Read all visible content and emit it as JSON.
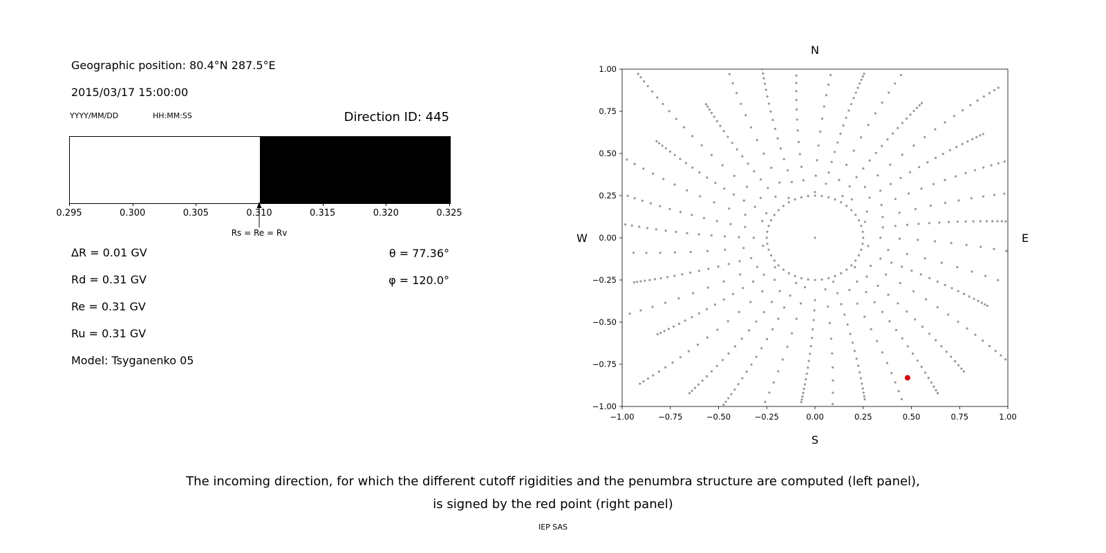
{
  "left_panel": {
    "geo_position": "Geographic position: 80.4°N 287.5°E",
    "datetime": "2015/03/17 15:00:00",
    "date_format_label": "YYYY/MM/DD",
    "time_format_label": "HH:MM:SS",
    "direction_id": "Direction ID: 445",
    "params": [
      "ΔR = 0.01 GV",
      "Rd = 0.31 GV",
      "Re = 0.31 GV",
      "Ru = 0.31 GV",
      "Model: Tsyganenko 05"
    ],
    "theta": "θ = 77.36°",
    "phi": "φ = 120.0°"
  },
  "caption": {
    "line1": "The incoming direction, for which the different cutoff rigidities and the penumbra structure are computed (left panel),",
    "line2": "is signed by the red point (right panel)",
    "credit": "IEP SAS"
  },
  "chart_data": [
    {
      "type": "bar",
      "title": "Penumbra structure",
      "xlim": [
        0.295,
        0.325
      ],
      "x_ticks": [
        {
          "value": 0.295,
          "label": "0.295"
        },
        {
          "value": 0.3,
          "label": "0.300"
        },
        {
          "value": 0.305,
          "label": "0.305"
        },
        {
          "value": 0.31,
          "label": "0.310"
        },
        {
          "value": 0.315,
          "label": "0.315"
        },
        {
          "value": 0.32,
          "label": "0.320"
        },
        {
          "value": 0.325,
          "label": "0.325"
        }
      ],
      "segments": [
        {
          "from": 0.295,
          "to": 0.31,
          "color": "#ffffff"
        },
        {
          "from": 0.31,
          "to": 0.325,
          "color": "#000000"
        }
      ],
      "marker": {
        "x": 0.31,
        "label": "Rs = Re = Rv"
      },
      "frame_color": "#000000"
    },
    {
      "type": "scatter",
      "title": "Incoming direction map",
      "xlim": [
        -1,
        1
      ],
      "ylim": [
        -1,
        1
      ],
      "x_ticks": [
        {
          "value": -1.0,
          "label": "−1.00"
        },
        {
          "value": -0.75,
          "label": "−0.75"
        },
        {
          "value": -0.5,
          "label": "−0.50"
        },
        {
          "value": -0.25,
          "label": "−0.25"
        },
        {
          "value": 0.0,
          "label": "0.00"
        },
        {
          "value": 0.25,
          "label": "0.25"
        },
        {
          "value": 0.5,
          "label": "0.50"
        },
        {
          "value": 0.75,
          "label": "0.75"
        },
        {
          "value": 1.0,
          "label": "1.00"
        }
      ],
      "y_ticks": [
        {
          "value": 1.0,
          "label": "1.00"
        },
        {
          "value": 0.75,
          "label": "0.75"
        },
        {
          "value": 0.5,
          "label": "0.50"
        },
        {
          "value": 0.25,
          "label": "0.25"
        },
        {
          "value": 0.0,
          "label": "0.00"
        },
        {
          "value": -0.25,
          "label": "−0.25"
        },
        {
          "value": -0.5,
          "label": "−0.50"
        },
        {
          "value": -0.75,
          "label": "−0.75"
        },
        {
          "value": -1.0,
          "label": "−1.00"
        }
      ],
      "compass": {
        "top": "N",
        "bottom": "S",
        "left": "W",
        "right": "E"
      },
      "dot_color": "#8c8c8c",
      "red_point": {
        "x": 0.48,
        "y": -0.83,
        "color": "#e00000"
      },
      "pattern": {
        "center_dot": true,
        "inner_ring": {
          "radius": 0.25,
          "count": 44
        },
        "spokes": {
          "count": 36,
          "r_start": 0.32,
          "r_end": 1.12,
          "dots_per_spoke": 16,
          "taper": 0.8,
          "curl": -0.12,
          "end_variation": 0.18,
          "start_variation": 0.05
        }
      }
    }
  ]
}
